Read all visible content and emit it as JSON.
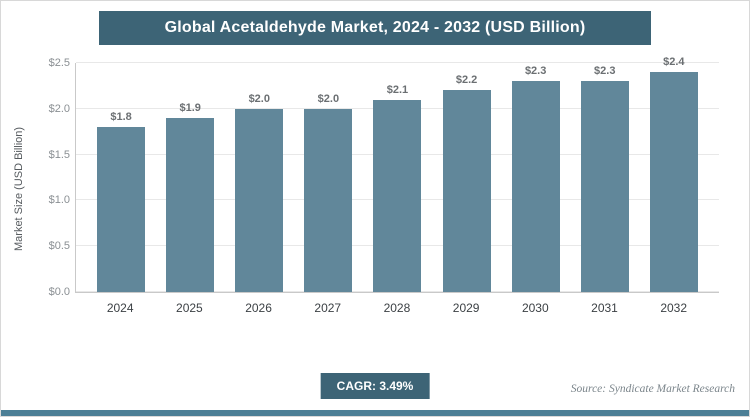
{
  "footer": {
    "cagr_label": "CAGR: 3.49%",
    "source": "Source: Syndicate Market Research"
  },
  "colors": {
    "banner": "#3d6476",
    "bar": "#61879a",
    "bottom_strip": "#4b7e95",
    "cagr_badge": "#3d6476"
  },
  "chart_data": {
    "type": "bar",
    "title": "Global Acetaldehyde Market, 2024 - 2032 (USD Billion)",
    "categories": [
      "2024",
      "2025",
      "2026",
      "2027",
      "2028",
      "2029",
      "2030",
      "2031",
      "2032"
    ],
    "values": [
      1.8,
      1.9,
      2.0,
      2.0,
      2.1,
      2.2,
      2.3,
      2.3,
      2.4
    ],
    "value_labels": [
      "$1.8",
      "$1.9",
      "$2.0",
      "$2.0",
      "$2.1",
      "$2.2",
      "$2.3",
      "$2.3",
      "$2.4"
    ],
    "xlabel": "",
    "ylabel": "Market Size (USD Billion)",
    "ylim": [
      0,
      2.5
    ],
    "yticks": [
      0,
      0.5,
      1.0,
      1.5,
      2.0,
      2.5
    ],
    "ytick_labels": [
      "$0.0",
      "$0.5",
      "$1.0",
      "$1.5",
      "$2.0",
      "$2.5"
    ],
    "grid": true,
    "legend": false
  }
}
